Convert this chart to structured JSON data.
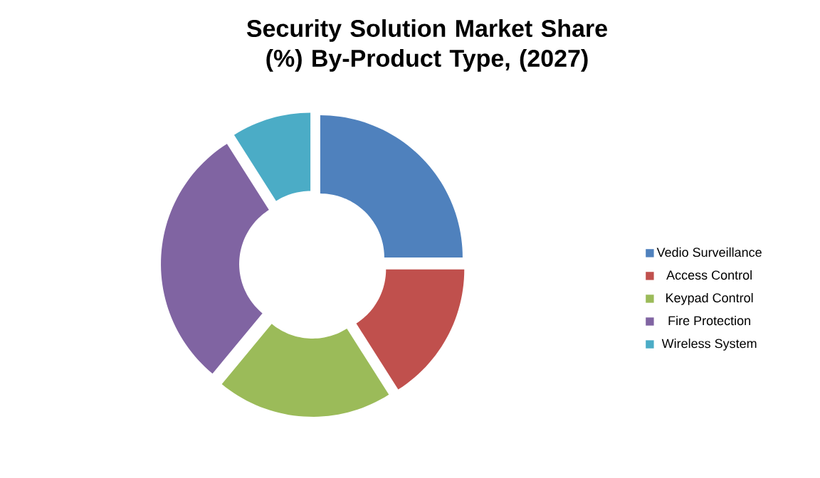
{
  "chart_data": {
    "type": "donut",
    "title": "Security Solution Market Share (%) By-Product Type, (2027)",
    "categories": [
      "Vedio Surveillance",
      "Access Control",
      "Keypad Control",
      "Fire Protection",
      "Wireless System"
    ],
    "values": [
      25,
      16,
      20,
      30,
      9
    ],
    "colors": [
      "#4f81bd",
      "#c0504d",
      "#9bbb59",
      "#8064a2",
      "#4bacc6"
    ],
    "legend": "right"
  }
}
